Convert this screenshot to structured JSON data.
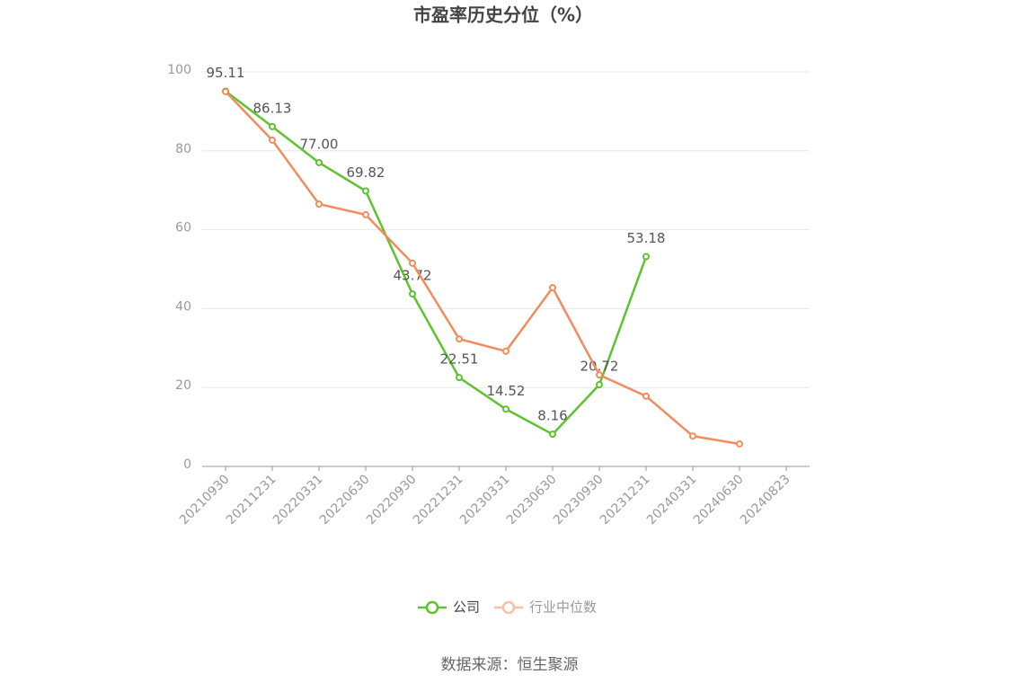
{
  "chart_data": {
    "type": "line",
    "title": "市盈率历史分位（%）",
    "categories": [
      "20210930",
      "20211231",
      "20220331",
      "20220630",
      "20220930",
      "20221231",
      "20230331",
      "20230630",
      "20230930",
      "20231231",
      "20240331",
      "20240630",
      "20240823"
    ],
    "series": [
      {
        "name": "公司",
        "color": "#5cc42c",
        "values": [
          95.11,
          86.13,
          77.0,
          69.82,
          43.72,
          22.51,
          14.52,
          8.16,
          20.72,
          53.18,
          null,
          null,
          null
        ],
        "value_labels": [
          "95.11",
          "86.13",
          "77.00",
          "69.82",
          "43.72",
          "22.51",
          "14.52",
          "8.16",
          "20.72",
          "53.18",
          null,
          null,
          null
        ]
      },
      {
        "name": "行业中位数",
        "color": "#f28c5c",
        "values": [
          95.0,
          82.7,
          66.5,
          63.8,
          51.5,
          32.3,
          29.2,
          45.3,
          23.2,
          17.8,
          7.7,
          5.7,
          null
        ]
      }
    ],
    "ylim": [
      0,
      100
    ],
    "yticks": [
      0,
      20,
      40,
      60,
      80,
      100
    ],
    "grid": true,
    "source": "数据来源：恒生聚源"
  }
}
